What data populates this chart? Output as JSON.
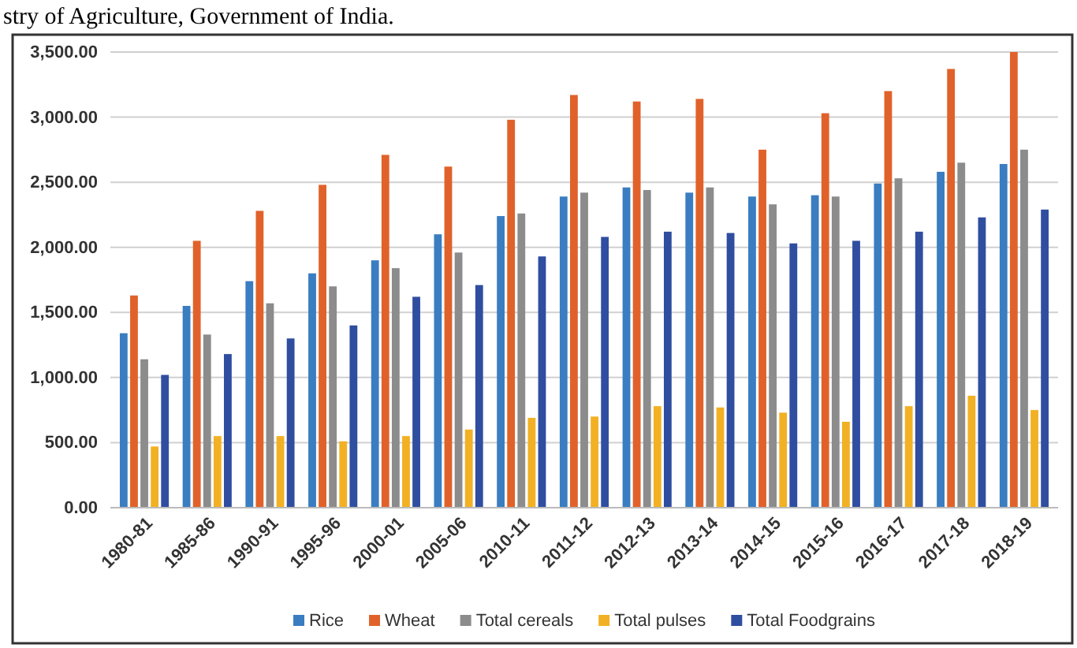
{
  "chart_data": {
    "type": "bar",
    "annotations": [
      "stry of Agriculture, Government of India."
    ],
    "categories": [
      "1980-81",
      "1985-86",
      "1990-91",
      "1995-96",
      "2000-01",
      "2005-06",
      "2010-11",
      "2011-12",
      "2012-13",
      "2013-14",
      "2014-15",
      "2015-16",
      "2016-17",
      "2017-18",
      "2018-19"
    ],
    "series": [
      {
        "name": "Rice",
        "color": "#3a7dc1",
        "values": [
          1340,
          1550,
          1740,
          1800,
          1900,
          2100,
          2240,
          2390,
          2460,
          2420,
          2390,
          2400,
          2490,
          2580,
          2640
        ]
      },
      {
        "name": "Wheat",
        "color": "#e0622a",
        "values": [
          1630,
          2050,
          2280,
          2480,
          2710,
          2620,
          2980,
          3170,
          3120,
          3140,
          2750,
          3030,
          3200,
          3370,
          3500
        ]
      },
      {
        "name": "Total cereals",
        "color": "#8c8c8c",
        "values": [
          1140,
          1330,
          1570,
          1700,
          1840,
          1960,
          2260,
          2420,
          2440,
          2460,
          2330,
          2390,
          2530,
          2650,
          2750
        ]
      },
      {
        "name": "Total pulses",
        "color": "#f2b124",
        "values": [
          470,
          550,
          550,
          510,
          550,
          600,
          690,
          700,
          780,
          770,
          730,
          660,
          780,
          860,
          750
        ]
      },
      {
        "name": "Total Foodgrains",
        "color": "#2f4ea0",
        "values": [
          1020,
          1180,
          1300,
          1400,
          1620,
          1710,
          1930,
          2080,
          2120,
          2110,
          2030,
          2050,
          2120,
          2230,
          2290
        ]
      }
    ],
    "ylim": [
      0,
      3500
    ],
    "yticks": [
      {
        "value": 0,
        "label": "0.00"
      },
      {
        "value": 500,
        "label": "500.00"
      },
      {
        "value": 1000,
        "label": "1,000.00"
      },
      {
        "value": 1500,
        "label": "1,500.00"
      },
      {
        "value": 2000,
        "label": "2,000.00"
      },
      {
        "value": 2500,
        "label": "2,500.00"
      },
      {
        "value": 3000,
        "label": "3,000.00"
      },
      {
        "value": 3500,
        "label": "3,500.00"
      }
    ],
    "grid": "y",
    "legend": "bottom"
  }
}
